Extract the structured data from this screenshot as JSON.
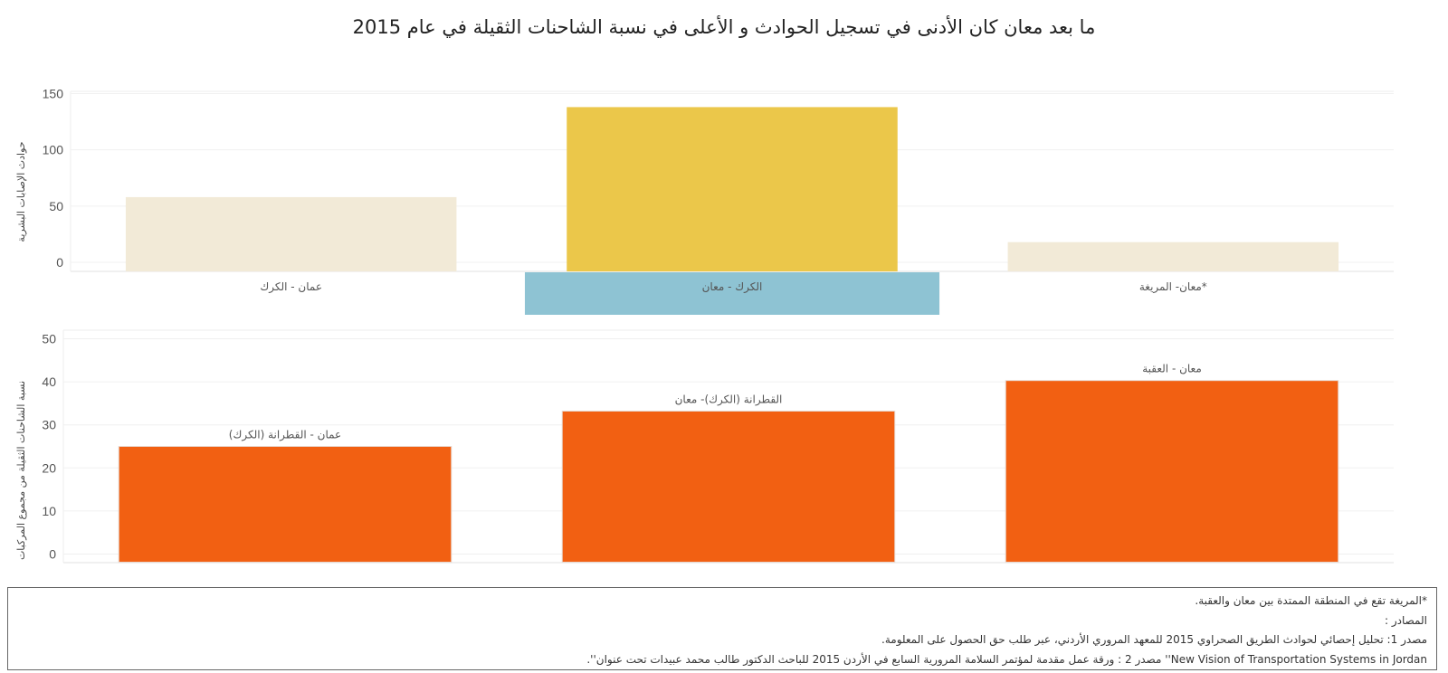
{
  "title": "ما بعد معان كان الأدنى في تسجيل الحوادث و الأعلى في نسبة الشاحنات الثقيلة في عام 2015",
  "chart_data": [
    {
      "type": "bar",
      "ylabel": "حوادث الإصابات البشرية",
      "categories": [
        "عمان - الكرك",
        "الكرك - معان",
        "معان- المريغة*"
      ],
      "values": [
        58,
        138,
        18
      ],
      "colors": [
        "#f2ead7",
        "#ebc74a",
        "#f2ead7"
      ],
      "highlight_index": 1,
      "highlight_color": "#8ec3d3",
      "yticks": [
        0,
        50,
        100,
        150
      ],
      "ylim": [
        -8,
        152
      ],
      "grid": true
    },
    {
      "type": "bar",
      "ylabel": "نسبة الشاحنات الثقيلة من مجموع المركبات",
      "categories": [
        "(عمان - القطرانة (الكرك",
        "القطرانة (الكرك)- معان",
        "معان - العقبة"
      ],
      "values": [
        25,
        33.2,
        40.3
      ],
      "color": "#f26012",
      "yticks": [
        0,
        10,
        20,
        30,
        40,
        50
      ],
      "ylim": [
        -2,
        52
      ],
      "grid": true
    }
  ],
  "footer": {
    "lines": [
      ".المريغة تقع في المنطقة الممتدة بين معان والعقبة*",
      ": المصادر",
      ".مصدر 1: تحليل إحصائي لحوادث الطريق الصحراوي 2015 للمعهد المروري الأردني، عبر طلب حق الحصول على المعلومة",
      ".''مصدر 2 : ورقة عمل مقدمة لمؤتمر السلامة المرورية السابع في الأردن 2015 للباحث الدكتور طالب محمد عبيدات تحت عنوان ''New Vision of Transportation Systems in Jordan"
    ]
  }
}
